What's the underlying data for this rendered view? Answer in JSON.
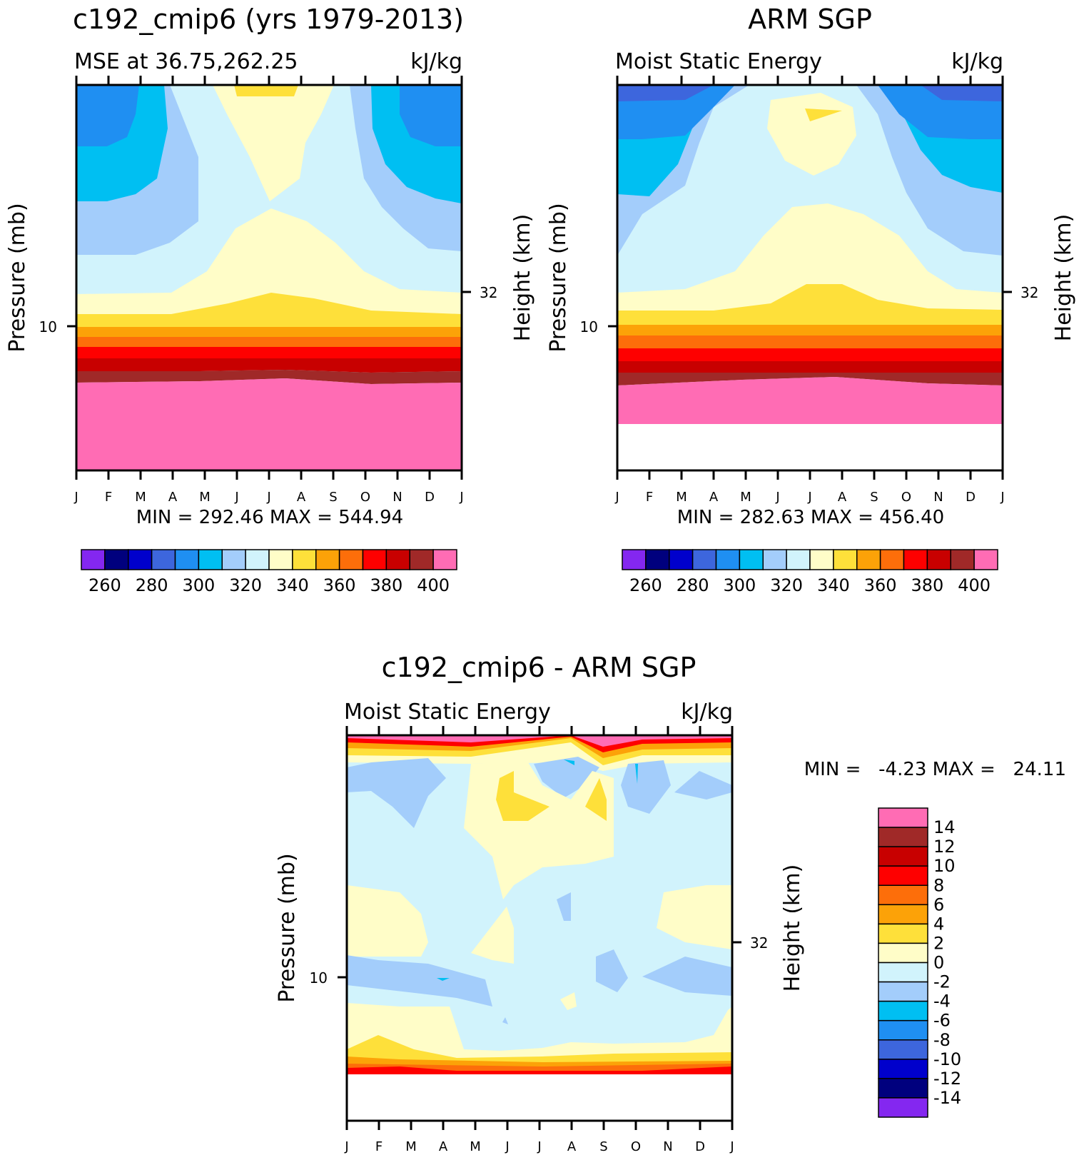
{
  "months": [
    "J",
    "F",
    "M",
    "A",
    "M",
    "J",
    "J",
    "A",
    "S",
    "O",
    "N",
    "D",
    "J"
  ],
  "colors": {
    "purple": "#8427f0",
    "navy": "#00007e",
    "blue": "#0000cc",
    "royal": "#3d66dd",
    "dodger": "#1f8ff2",
    "deepsky": "#00bff2",
    "lightblue": "#a3cdfb",
    "paleblue": "#d1f3fc",
    "paleyellow": "#fffdc8",
    "yellow": "#fee03a",
    "orange": "#fca208",
    "darkorange": "#fd6e0a",
    "red": "#fe0000",
    "crimson": "#c80000",
    "brown": "#a02928",
    "pink": "#ff6cb4"
  },
  "panels": [
    {
      "id": "model",
      "title": "c192_cmip6 (yrs 1979-2013)",
      "subtitle_left": "MSE at 36.75,262.25",
      "units": "kJ/kg",
      "ylabel_left": "Pressure (mb)",
      "ylabel_right": "Height (km)",
      "ytick_left": "10",
      "ytick_right": "32",
      "stats": "MIN = 292.46 MAX = 544.94"
    },
    {
      "id": "obs",
      "title": "ARM SGP",
      "subtitle_left": "Moist Static Energy",
      "units": "kJ/kg",
      "ylabel_left": "Pressure (mb)",
      "ylabel_right": "Height (km)",
      "ytick_left": "10",
      "ytick_right": "32",
      "stats": "MIN = 282.63 MAX = 456.40"
    },
    {
      "id": "diff",
      "title": "c192_cmip6 - ARM SGP",
      "subtitle_left": "Moist Static Energy",
      "units": "kJ/kg",
      "ylabel_left": "Pressure (mb)",
      "ylabel_right": "Height (km)",
      "ytick_left": "10",
      "ytick_right": "32",
      "stats": "MIN =   -4.23 MAX =   24.11"
    }
  ],
  "chart_data": [
    {
      "type": "heatmap",
      "title": "c192_cmip6 (yrs 1979-2013)",
      "subtitle": "MSE at 36.75,262.25",
      "units": "kJ/kg",
      "x_categories": [
        "J",
        "F",
        "M",
        "A",
        "M",
        "J",
        "J",
        "A",
        "S",
        "O",
        "N",
        "D",
        "J"
      ],
      "xlabel": "",
      "ylabel": "Pressure (mb)",
      "ylabel_right": "Height (km)",
      "min": 292.46,
      "max": 544.94,
      "levels": [
        260,
        270,
        280,
        290,
        300,
        310,
        320,
        330,
        340,
        350,
        360,
        370,
        380,
        390,
        400
      ],
      "colorbar_labels": [
        "260",
        "280",
        "300",
        "320",
        "340",
        "360",
        "380",
        "400"
      ]
    },
    {
      "type": "heatmap",
      "title": "ARM SGP",
      "subtitle": "Moist Static Energy",
      "units": "kJ/kg",
      "x_categories": [
        "J",
        "F",
        "M",
        "A",
        "M",
        "J",
        "J",
        "A",
        "S",
        "O",
        "N",
        "D",
        "J"
      ],
      "ylabel": "Pressure (mb)",
      "ylabel_right": "Height (km)",
      "min": 282.63,
      "max": 456.4,
      "levels": [
        260,
        270,
        280,
        290,
        300,
        310,
        320,
        330,
        340,
        350,
        360,
        370,
        380,
        390,
        400
      ],
      "colorbar_labels": [
        "260",
        "280",
        "300",
        "320",
        "340",
        "360",
        "380",
        "400"
      ]
    },
    {
      "type": "heatmap",
      "title": "c192_cmip6 - ARM SGP",
      "subtitle": "Moist Static Energy",
      "units": "kJ/kg",
      "x_categories": [
        "J",
        "F",
        "M",
        "A",
        "M",
        "J",
        "J",
        "A",
        "S",
        "O",
        "N",
        "D",
        "J"
      ],
      "ylabel": "Pressure (mb)",
      "ylabel_right": "Height (km)",
      "min": -4.23,
      "max": 24.11,
      "levels": [
        -14,
        -12,
        -10,
        -8,
        -6,
        -4,
        -2,
        0,
        2,
        4,
        6,
        8,
        10,
        12,
        14
      ],
      "colorbar_labels": [
        "14",
        "12",
        "10",
        "8",
        "6",
        "4",
        "2",
        "0",
        "-2",
        "-4",
        "-6",
        "-8",
        "-10",
        "-12",
        "-14"
      ]
    }
  ],
  "colorbar_main": {
    "colors": [
      "#8427f0",
      "#00007e",
      "#0000cc",
      "#3d66dd",
      "#1f8ff2",
      "#00bff2",
      "#a3cdfb",
      "#d1f3fc",
      "#fffdc8",
      "#fee03a",
      "#fca208",
      "#fd6e0a",
      "#fe0000",
      "#c80000",
      "#a02928",
      "#ff6cb4"
    ],
    "labels": [
      "260",
      "280",
      "300",
      "320",
      "340",
      "360",
      "380",
      "400"
    ]
  },
  "colorbar_diff": {
    "colors": [
      "#ff6cb4",
      "#a02928",
      "#c80000",
      "#fe0000",
      "#fd6e0a",
      "#fca208",
      "#fee03a",
      "#fffdc8",
      "#d1f3fc",
      "#a3cdfb",
      "#00bff2",
      "#1f8ff2",
      "#3d66dd",
      "#0000cc",
      "#00007e",
      "#8427f0"
    ],
    "labels": [
      "14",
      "12",
      "10",
      "8",
      "6",
      "4",
      "2",
      "0",
      "-2",
      "-4",
      "-6",
      "-8",
      "-10",
      "-12",
      "-14"
    ]
  }
}
